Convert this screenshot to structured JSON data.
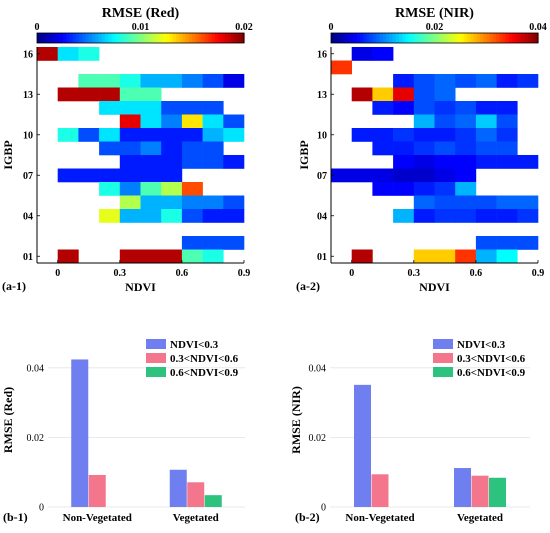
{
  "chart_data": [
    {
      "panel": "(a-1)",
      "type": "heatmap",
      "title": "RMSE (Red)",
      "xlabel": "NDVI",
      "ylabel": "IGBP",
      "colorbar_ticks": [
        "0",
        "0.01",
        "0.02"
      ],
      "colorbar_range": [
        0,
        0.02
      ],
      "x_ticks": [
        "0",
        "0.3",
        "0.6",
        "0.9"
      ],
      "y_ticks": [
        "01",
        "04",
        "07",
        "10",
        "13",
        "16"
      ],
      "x_range": [
        -0.1,
        0.9
      ],
      "y_range": [
        1,
        16
      ],
      "cell_width": 0.1,
      "colormap": "jet",
      "cells": [
        {
          "ndvi": -0.1,
          "igbp": 16,
          "value": 0.019
        },
        {
          "ndvi": 0.0,
          "igbp": 16,
          "value": 0.007
        },
        {
          "ndvi": 0.1,
          "igbp": 16,
          "value": 0.008
        },
        {
          "ndvi": 0.1,
          "igbp": 14,
          "value": 0.009
        },
        {
          "ndvi": 0.2,
          "igbp": 14,
          "value": 0.009
        },
        {
          "ndvi": 0.3,
          "igbp": 14,
          "value": 0.008
        },
        {
          "ndvi": 0.4,
          "igbp": 14,
          "value": 0.006
        },
        {
          "ndvi": 0.5,
          "igbp": 14,
          "value": 0.006
        },
        {
          "ndvi": 0.6,
          "igbp": 14,
          "value": 0.005
        },
        {
          "ndvi": 0.7,
          "igbp": 14,
          "value": 0.004
        },
        {
          "ndvi": 0.8,
          "igbp": 14,
          "value": 0.002
        },
        {
          "ndvi": 0.0,
          "igbp": 13,
          "value": 0.019
        },
        {
          "ndvi": 0.1,
          "igbp": 13,
          "value": 0.019
        },
        {
          "ndvi": 0.2,
          "igbp": 13,
          "value": 0.019
        },
        {
          "ndvi": 0.3,
          "igbp": 13,
          "value": 0.009
        },
        {
          "ndvi": 0.4,
          "igbp": 13,
          "value": 0.009
        },
        {
          "ndvi": 0.2,
          "igbp": 12,
          "value": 0.007
        },
        {
          "ndvi": 0.3,
          "igbp": 12,
          "value": 0.007
        },
        {
          "ndvi": 0.4,
          "igbp": 12,
          "value": 0.007
        },
        {
          "ndvi": 0.5,
          "igbp": 12,
          "value": 0.004
        },
        {
          "ndvi": 0.6,
          "igbp": 12,
          "value": 0.004
        },
        {
          "ndvi": 0.7,
          "igbp": 12,
          "value": 0.004
        },
        {
          "ndvi": 0.3,
          "igbp": 11,
          "value": 0.018
        },
        {
          "ndvi": 0.4,
          "igbp": 11,
          "value": 0.007
        },
        {
          "ndvi": 0.5,
          "igbp": 11,
          "value": 0.005
        },
        {
          "ndvi": 0.6,
          "igbp": 11,
          "value": 0.013
        },
        {
          "ndvi": 0.7,
          "igbp": 11,
          "value": 0.007
        },
        {
          "ndvi": 0.8,
          "igbp": 11,
          "value": 0.004
        },
        {
          "ndvi": 0.0,
          "igbp": 10,
          "value": 0.008
        },
        {
          "ndvi": 0.1,
          "igbp": 10,
          "value": 0.004
        },
        {
          "ndvi": 0.2,
          "igbp": 10,
          "value": 0.007
        },
        {
          "ndvi": 0.3,
          "igbp": 10,
          "value": 0.003
        },
        {
          "ndvi": 0.4,
          "igbp": 10,
          "value": 0.003
        },
        {
          "ndvi": 0.5,
          "igbp": 10,
          "value": 0.003
        },
        {
          "ndvi": 0.6,
          "igbp": 10,
          "value": 0.003
        },
        {
          "ndvi": 0.7,
          "igbp": 10,
          "value": 0.006
        },
        {
          "ndvi": 0.8,
          "igbp": 10,
          "value": 0.007
        },
        {
          "ndvi": 0.2,
          "igbp": 9,
          "value": 0.004
        },
        {
          "ndvi": 0.3,
          "igbp": 9,
          "value": 0.004
        },
        {
          "ndvi": 0.4,
          "igbp": 9,
          "value": 0.005
        },
        {
          "ndvi": 0.5,
          "igbp": 9,
          "value": 0.003
        },
        {
          "ndvi": 0.6,
          "igbp": 9,
          "value": 0.004
        },
        {
          "ndvi": 0.7,
          "igbp": 9,
          "value": 0.004
        },
        {
          "ndvi": 0.3,
          "igbp": 8,
          "value": 0.003
        },
        {
          "ndvi": 0.4,
          "igbp": 8,
          "value": 0.003
        },
        {
          "ndvi": 0.5,
          "igbp": 8,
          "value": 0.003
        },
        {
          "ndvi": 0.6,
          "igbp": 8,
          "value": 0.004
        },
        {
          "ndvi": 0.7,
          "igbp": 8,
          "value": 0.004
        },
        {
          "ndvi": 0.8,
          "igbp": 8,
          "value": 0.003
        },
        {
          "ndvi": 0.0,
          "igbp": 7,
          "value": 0.003
        },
        {
          "ndvi": 0.1,
          "igbp": 7,
          "value": 0.003
        },
        {
          "ndvi": 0.2,
          "igbp": 7,
          "value": 0.003
        },
        {
          "ndvi": 0.3,
          "igbp": 7,
          "value": 0.003
        },
        {
          "ndvi": 0.4,
          "igbp": 7,
          "value": 0.003
        },
        {
          "ndvi": 0.5,
          "igbp": 7,
          "value": 0.003
        },
        {
          "ndvi": 0.2,
          "igbp": 6,
          "value": 0.008
        },
        {
          "ndvi": 0.3,
          "igbp": 6,
          "value": 0.005
        },
        {
          "ndvi": 0.4,
          "igbp": 6,
          "value": 0.009
        },
        {
          "ndvi": 0.5,
          "igbp": 6,
          "value": 0.011
        },
        {
          "ndvi": 0.6,
          "igbp": 6,
          "value": 0.016
        },
        {
          "ndvi": 0.3,
          "igbp": 5,
          "value": 0.011
        },
        {
          "ndvi": 0.4,
          "igbp": 5,
          "value": 0.006
        },
        {
          "ndvi": 0.5,
          "igbp": 5,
          "value": 0.006
        },
        {
          "ndvi": 0.6,
          "igbp": 5,
          "value": 0.005
        },
        {
          "ndvi": 0.7,
          "igbp": 5,
          "value": 0.005
        },
        {
          "ndvi": 0.8,
          "igbp": 5,
          "value": 0.004
        },
        {
          "ndvi": 0.2,
          "igbp": 4,
          "value": 0.012
        },
        {
          "ndvi": 0.3,
          "igbp": 4,
          "value": 0.006
        },
        {
          "ndvi": 0.4,
          "igbp": 4,
          "value": 0.006
        },
        {
          "ndvi": 0.5,
          "igbp": 4,
          "value": 0.008
        },
        {
          "ndvi": 0.6,
          "igbp": 4,
          "value": 0.004
        },
        {
          "ndvi": 0.7,
          "igbp": 4,
          "value": 0.003
        },
        {
          "ndvi": 0.8,
          "igbp": 4,
          "value": 0.003
        },
        {
          "ndvi": 0.6,
          "igbp": 2,
          "value": 0.004
        },
        {
          "ndvi": 0.7,
          "igbp": 2,
          "value": 0.004
        },
        {
          "ndvi": 0.8,
          "igbp": 2,
          "value": 0.004
        },
        {
          "ndvi": 0.0,
          "igbp": 1,
          "value": 0.019
        },
        {
          "ndvi": 0.3,
          "igbp": 1,
          "value": 0.019
        },
        {
          "ndvi": 0.4,
          "igbp": 1,
          "value": 0.019
        },
        {
          "ndvi": 0.5,
          "igbp": 1,
          "value": 0.019
        },
        {
          "ndvi": 0.6,
          "igbp": 1,
          "value": 0.009
        },
        {
          "ndvi": 0.7,
          "igbp": 1,
          "value": 0.008
        }
      ]
    },
    {
      "panel": "(a-2)",
      "type": "heatmap",
      "title": "RMSE (NIR)",
      "xlabel": "NDVI",
      "ylabel": "IGBP",
      "colorbar_ticks": [
        "0",
        "0.02",
        "0.04"
      ],
      "colorbar_range": [
        0,
        0.04
      ],
      "x_ticks": [
        "0",
        "0.3",
        "0.6",
        "0.9"
      ],
      "y_ticks": [
        "01",
        "04",
        "07",
        "10",
        "13",
        "16"
      ],
      "x_range": [
        -0.1,
        0.9
      ],
      "y_range": [
        1,
        16
      ],
      "cell_width": 0.1,
      "colormap": "jet",
      "cells": [
        {
          "ndvi": 0.0,
          "igbp": 16,
          "value": 0.004
        },
        {
          "ndvi": 0.1,
          "igbp": 16,
          "value": 0.005
        },
        {
          "ndvi": -0.1,
          "igbp": 15,
          "value": 0.033
        },
        {
          "ndvi": 0.2,
          "igbp": 14,
          "value": 0.006
        },
        {
          "ndvi": 0.3,
          "igbp": 14,
          "value": 0.008
        },
        {
          "ndvi": 0.4,
          "igbp": 14,
          "value": 0.009
        },
        {
          "ndvi": 0.5,
          "igbp": 14,
          "value": 0.008
        },
        {
          "ndvi": 0.6,
          "igbp": 14,
          "value": 0.009
        },
        {
          "ndvi": 0.7,
          "igbp": 14,
          "value": 0.006
        },
        {
          "ndvi": 0.8,
          "igbp": 14,
          "value": 0.007
        },
        {
          "ndvi": 0.0,
          "igbp": 13,
          "value": 0.038
        },
        {
          "ndvi": 0.1,
          "igbp": 13,
          "value": 0.027
        },
        {
          "ndvi": 0.2,
          "igbp": 13,
          "value": 0.036
        },
        {
          "ndvi": 0.3,
          "igbp": 13,
          "value": 0.008
        },
        {
          "ndvi": 0.4,
          "igbp": 13,
          "value": 0.009
        },
        {
          "ndvi": 0.1,
          "igbp": 12,
          "value": 0.006
        },
        {
          "ndvi": 0.2,
          "igbp": 12,
          "value": 0.005
        },
        {
          "ndvi": 0.3,
          "igbp": 12,
          "value": 0.008
        },
        {
          "ndvi": 0.4,
          "igbp": 12,
          "value": 0.007
        },
        {
          "ndvi": 0.5,
          "igbp": 12,
          "value": 0.008
        },
        {
          "ndvi": 0.6,
          "igbp": 12,
          "value": 0.006
        },
        {
          "ndvi": 0.7,
          "igbp": 12,
          "value": 0.006
        },
        {
          "ndvi": 0.3,
          "igbp": 11,
          "value": 0.012
        },
        {
          "ndvi": 0.4,
          "igbp": 11,
          "value": 0.008
        },
        {
          "ndvi": 0.5,
          "igbp": 11,
          "value": 0.009
        },
        {
          "ndvi": 0.6,
          "igbp": 11,
          "value": 0.013
        },
        {
          "ndvi": 0.7,
          "igbp": 11,
          "value": 0.008
        },
        {
          "ndvi": 0.0,
          "igbp": 10,
          "value": 0.006
        },
        {
          "ndvi": 0.1,
          "igbp": 10,
          "value": 0.006
        },
        {
          "ndvi": 0.2,
          "igbp": 10,
          "value": 0.007
        },
        {
          "ndvi": 0.3,
          "igbp": 10,
          "value": 0.006
        },
        {
          "ndvi": 0.4,
          "igbp": 10,
          "value": 0.006
        },
        {
          "ndvi": 0.5,
          "igbp": 10,
          "value": 0.007
        },
        {
          "ndvi": 0.6,
          "igbp": 10,
          "value": 0.009
        },
        {
          "ndvi": 0.7,
          "igbp": 10,
          "value": 0.007
        },
        {
          "ndvi": 0.1,
          "igbp": 9,
          "value": 0.006
        },
        {
          "ndvi": 0.2,
          "igbp": 9,
          "value": 0.006
        },
        {
          "ndvi": 0.3,
          "igbp": 9,
          "value": 0.007
        },
        {
          "ndvi": 0.4,
          "igbp": 9,
          "value": 0.008
        },
        {
          "ndvi": 0.5,
          "igbp": 9,
          "value": 0.007
        },
        {
          "ndvi": 0.6,
          "igbp": 9,
          "value": 0.008
        },
        {
          "ndvi": 0.7,
          "igbp": 9,
          "value": 0.008
        },
        {
          "ndvi": 0.2,
          "igbp": 8,
          "value": 0.005
        },
        {
          "ndvi": 0.3,
          "igbp": 8,
          "value": 0.004
        },
        {
          "ndvi": 0.4,
          "igbp": 8,
          "value": 0.005
        },
        {
          "ndvi": 0.5,
          "igbp": 8,
          "value": 0.005
        },
        {
          "ndvi": 0.6,
          "igbp": 8,
          "value": 0.006
        },
        {
          "ndvi": 0.7,
          "igbp": 8,
          "value": 0.006
        },
        {
          "ndvi": 0.8,
          "igbp": 8,
          "value": 0.006
        },
        {
          "ndvi": -0.1,
          "igbp": 7,
          "value": 0.004
        },
        {
          "ndvi": 0.0,
          "igbp": 7,
          "value": 0.004
        },
        {
          "ndvi": 0.1,
          "igbp": 7,
          "value": 0.004
        },
        {
          "ndvi": 0.2,
          "igbp": 7,
          "value": 0.003
        },
        {
          "ndvi": 0.3,
          "igbp": 7,
          "value": 0.003
        },
        {
          "ndvi": 0.4,
          "igbp": 7,
          "value": 0.004
        },
        {
          "ndvi": 0.5,
          "igbp": 7,
          "value": 0.005
        },
        {
          "ndvi": 0.1,
          "igbp": 6,
          "value": 0.005
        },
        {
          "ndvi": 0.2,
          "igbp": 6,
          "value": 0.005
        },
        {
          "ndvi": 0.3,
          "igbp": 6,
          "value": 0.006
        },
        {
          "ndvi": 0.4,
          "igbp": 6,
          "value": 0.007
        },
        {
          "ndvi": 0.5,
          "igbp": 6,
          "value": 0.012
        },
        {
          "ndvi": 0.3,
          "igbp": 5,
          "value": 0.009
        },
        {
          "ndvi": 0.4,
          "igbp": 5,
          "value": 0.008
        },
        {
          "ndvi": 0.5,
          "igbp": 5,
          "value": 0.008
        },
        {
          "ndvi": 0.6,
          "igbp": 5,
          "value": 0.008
        },
        {
          "ndvi": 0.7,
          "igbp": 5,
          "value": 0.009
        },
        {
          "ndvi": 0.8,
          "igbp": 5,
          "value": 0.009
        },
        {
          "ndvi": 0.2,
          "igbp": 4,
          "value": 0.012
        },
        {
          "ndvi": 0.3,
          "igbp": 4,
          "value": 0.006
        },
        {
          "ndvi": 0.4,
          "igbp": 4,
          "value": 0.007
        },
        {
          "ndvi": 0.5,
          "igbp": 4,
          "value": 0.007
        },
        {
          "ndvi": 0.6,
          "igbp": 4,
          "value": 0.006
        },
        {
          "ndvi": 0.7,
          "igbp": 4,
          "value": 0.006
        },
        {
          "ndvi": 0.8,
          "igbp": 4,
          "value": 0.007
        },
        {
          "ndvi": 0.6,
          "igbp": 2,
          "value": 0.008
        },
        {
          "ndvi": 0.7,
          "igbp": 2,
          "value": 0.008
        },
        {
          "ndvi": 0.8,
          "igbp": 2,
          "value": 0.008
        },
        {
          "ndvi": 0.0,
          "igbp": 1,
          "value": 0.038
        },
        {
          "ndvi": 0.3,
          "igbp": 1,
          "value": 0.027
        },
        {
          "ndvi": 0.4,
          "igbp": 1,
          "value": 0.027
        },
        {
          "ndvi": 0.5,
          "igbp": 1,
          "value": 0.033
        },
        {
          "ndvi": 0.6,
          "igbp": 1,
          "value": 0.012
        },
        {
          "ndvi": 0.7,
          "igbp": 1,
          "value": 0.015
        }
      ]
    },
    {
      "panel": "(b-1)",
      "type": "bar",
      "ylabel": "RMSE (Red)",
      "categories": [
        "Non-Vegetated",
        "Vegetated"
      ],
      "ylim": [
        0,
        0.05
      ],
      "y_ticks": [
        "0",
        "0.02",
        "0.04"
      ],
      "grid": true,
      "legend_position": "top-right",
      "series": [
        {
          "name": "NDVI<0.3",
          "color": "#6f7ff0",
          "values": [
            0.0424,
            0.0107
          ]
        },
        {
          "name": "0.3<NDVI<0.6",
          "color": "#f4768d",
          "values": [
            0.0092,
            0.0071
          ]
        },
        {
          "name": "0.6<NDVI<0.9",
          "color": "#2ec27f",
          "values": [
            null,
            0.0034
          ]
        }
      ]
    },
    {
      "panel": "(b-2)",
      "type": "bar",
      "ylabel": "RMSE (NIR)",
      "categories": [
        "Non-Vegetated",
        "Vegetated"
      ],
      "ylim": [
        0,
        0.05
      ],
      "y_ticks": [
        "0",
        "0.02",
        "0.04"
      ],
      "grid": true,
      "legend_position": "top-right",
      "series": [
        {
          "name": "NDVI<0.3",
          "color": "#6f7ff0",
          "values": [
            0.0351,
            0.0112
          ]
        },
        {
          "name": "0.3<NDVI<0.6",
          "color": "#f4768d",
          "values": [
            0.0094,
            0.009
          ]
        },
        {
          "name": "0.6<NDVI<0.9",
          "color": "#2ec27f",
          "values": [
            null,
            0.0084
          ]
        }
      ]
    }
  ]
}
